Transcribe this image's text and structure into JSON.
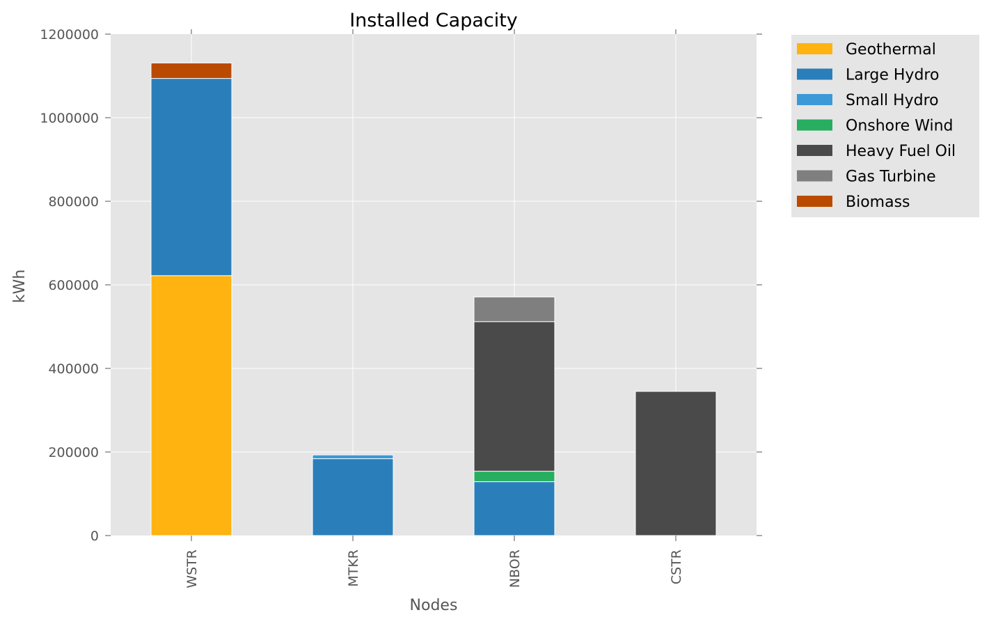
{
  "chart_data": {
    "type": "bar",
    "stacked": true,
    "title": "Installed Capacity",
    "xlabel": "Nodes",
    "ylabel": "kWh",
    "categories": [
      "WSTR",
      "MTKR",
      "NBOR",
      "CSTR"
    ],
    "ylim": [
      0,
      1200000
    ],
    "yticks": [
      0,
      200000,
      400000,
      600000,
      800000,
      1000000,
      1200000
    ],
    "ytick_labels": [
      "0",
      "200000",
      "400000",
      "600000",
      "800000",
      "1000000",
      "1200000"
    ],
    "grid": true,
    "legend_position": "outside-right-top",
    "series": [
      {
        "name": "Geothermal",
        "color": "#FFB310",
        "values": [
          622000,
          0,
          0,
          0
        ]
      },
      {
        "name": "Large Hydro",
        "color": "#2A7FBA",
        "values": [
          472000,
          184000,
          129000,
          0
        ]
      },
      {
        "name": "Small Hydro",
        "color": "#3B99D8",
        "values": [
          0,
          9000,
          0,
          0
        ]
      },
      {
        "name": "Onshore Wind",
        "color": "#27AE60",
        "values": [
          0,
          0,
          25000,
          0
        ]
      },
      {
        "name": "Heavy Fuel Oil",
        "color": "#4A4A4A",
        "values": [
          0,
          0,
          358000,
          345000
        ]
      },
      {
        "name": "Gas Turbine",
        "color": "#7F7F7F",
        "values": [
          0,
          0,
          59000,
          0
        ]
      },
      {
        "name": "Biomass",
        "color": "#BA4A00",
        "values": [
          37000,
          0,
          0,
          0
        ]
      }
    ]
  },
  "colors": {
    "plot_background": "#E5E5E5",
    "grid": "#FFFFFF",
    "legend_background": "#E5E5E5"
  }
}
